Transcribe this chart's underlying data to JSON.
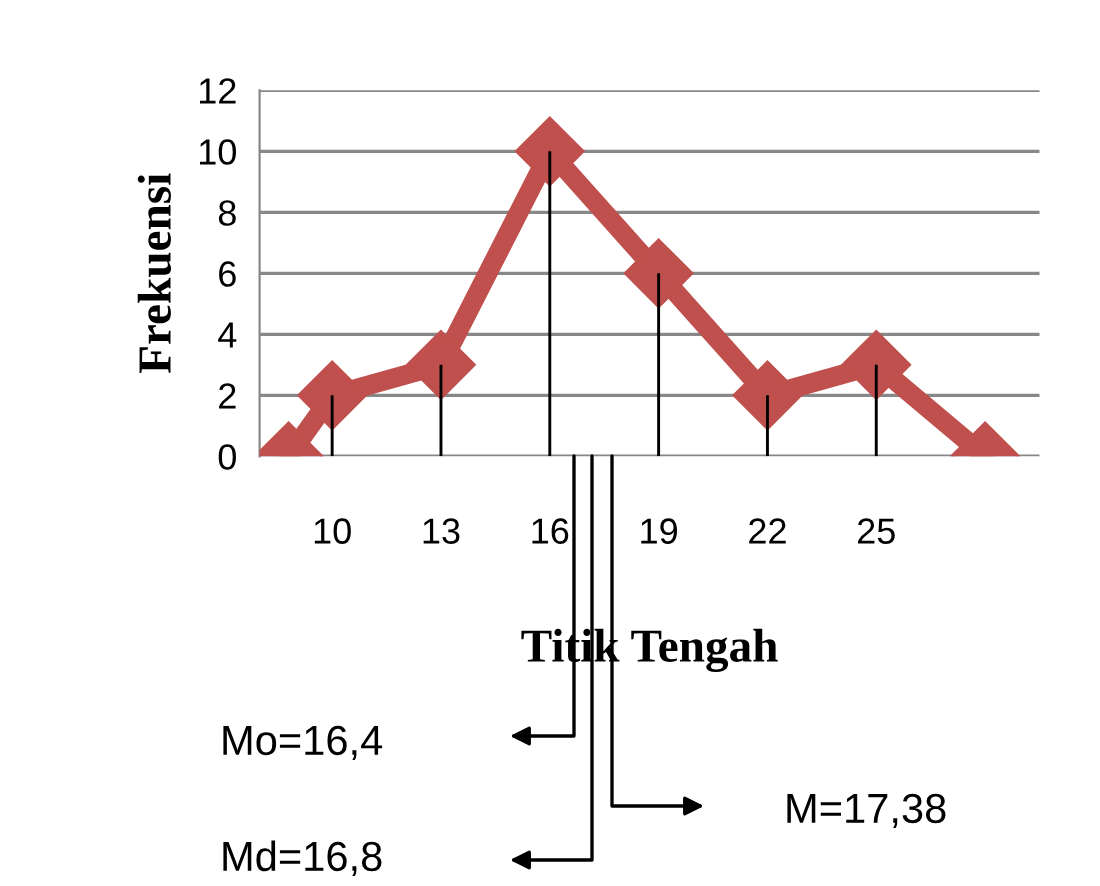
{
  "chart_data": {
    "type": "line",
    "xlabel": "Titik Tengah",
    "ylabel": "Frekuensi",
    "xlim": [
      8,
      29.5
    ],
    "ylim": [
      0,
      12
    ],
    "xticks": [
      10,
      13,
      16,
      19,
      22,
      25
    ],
    "yticks": [
      0,
      2,
      4,
      6,
      8,
      10,
      12
    ],
    "grid": "y",
    "legend": false,
    "marker": "diamond",
    "series": [
      {
        "type": "bar",
        "color": "#000000",
        "x": [
          10,
          13,
          16,
          19,
          22,
          25
        ],
        "values": [
          2,
          3,
          10,
          6,
          2,
          3
        ]
      },
      {
        "color": "#c0504d",
        "x": [
          8.8,
          10,
          13,
          16,
          19,
          22,
          25,
          28
        ],
        "values": [
          0,
          2,
          3,
          10,
          6,
          2,
          3,
          0
        ]
      }
    ],
    "annotations": [
      "Mo=16,4",
      "Md=16,8",
      "M=17,38"
    ]
  }
}
